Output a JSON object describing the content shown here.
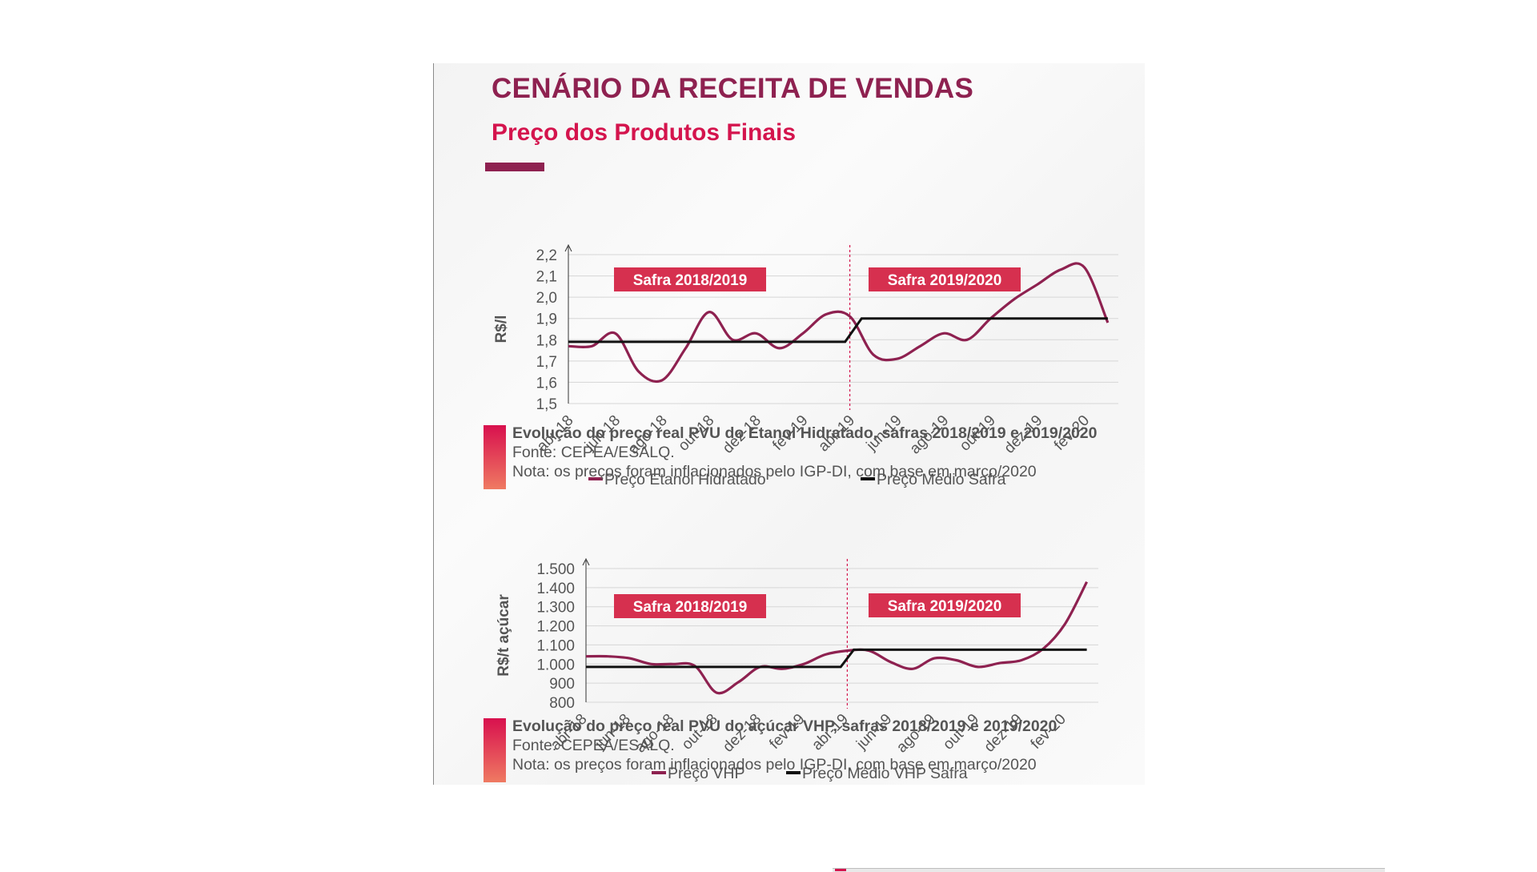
{
  "page": {
    "title": "CENÁRIO DA RECEITA DE VENDAS",
    "subtitle": "Preço dos Produtos Finais"
  },
  "colors": {
    "title": "#8e2150",
    "subtitle": "#d4144d",
    "series_main": "#8e2150",
    "series_avg": "#111111",
    "badge": "#d6304f"
  },
  "chart_data": [
    {
      "type": "line",
      "ylabel": "R$/l",
      "yticks": [
        "1,5",
        "1,6",
        "1,7",
        "1,8",
        "1,9",
        "2,0",
        "2,1",
        "2,2"
      ],
      "ylim": [
        1.5,
        2.2
      ],
      "x_ticks": [
        "abr-18",
        "jun-18",
        "ago-18",
        "out-18",
        "dez-18",
        "fev-19",
        "abr-19",
        "jun-19",
        "ago-19",
        "out-19",
        "dez-19",
        "fev-20"
      ],
      "badges": [
        "Safra 2018/2019",
        "Safra 2019/2020"
      ],
      "divider_month": 12,
      "grid": true,
      "legend_position": "bottom",
      "series": [
        {
          "name": "Preço Etanol Hidratado",
          "x": [
            0,
            1,
            2,
            3,
            4,
            5,
            6,
            7,
            8,
            9,
            10,
            11,
            12,
            13,
            14,
            15,
            16,
            17,
            18,
            19,
            20,
            21,
            22,
            23
          ],
          "values": [
            1.77,
            1.77,
            1.83,
            1.65,
            1.61,
            1.76,
            1.93,
            1.8,
            1.83,
            1.76,
            1.83,
            1.92,
            1.91,
            1.73,
            1.71,
            1.77,
            1.83,
            1.8,
            1.9,
            1.99,
            2.06,
            2.13,
            2.14,
            1.88
          ]
        },
        {
          "name": "Preço Médio Safra",
          "x": [
            0,
            11.8,
            12.5,
            23
          ],
          "values": [
            1.79,
            1.79,
            1.9,
            1.9
          ]
        }
      ]
    },
    {
      "type": "line",
      "ylabel": "R$/t açúcar",
      "yticks": [
        "800",
        "900",
        "1.000",
        "1.100",
        "1.200",
        "1.300",
        "1.400",
        "1.500"
      ],
      "ylim": [
        800,
        1500
      ],
      "x_ticks": [
        "abr-18",
        "jun-18",
        "ago-18",
        "out-18",
        "dez-18",
        "fev-19",
        "abr-19",
        "jun-19",
        "ago-19",
        "out-19",
        "dez-19",
        "fev-20"
      ],
      "badges": [
        "Safra 2018/2019",
        "Safra 2019/2020"
      ],
      "divider_month": 12,
      "grid": true,
      "legend_position": "bottom",
      "series": [
        {
          "name": "Preço VHP",
          "x": [
            0,
            1,
            2,
            3,
            4,
            5,
            6,
            7,
            8,
            9,
            10,
            11,
            12,
            13,
            14,
            15,
            16,
            17,
            18,
            19,
            20,
            21,
            22,
            23
          ],
          "values": [
            1040,
            1040,
            1030,
            1000,
            1000,
            990,
            850,
            905,
            985,
            975,
            1000,
            1050,
            1070,
            1070,
            1010,
            975,
            1030,
            1020,
            985,
            1005,
            1020,
            1080,
            1210,
            1430
          ]
        },
        {
          "name": "Preço Médio VHP Safra",
          "x": [
            0,
            11.7,
            12.3,
            23
          ],
          "values": [
            985,
            985,
            1075,
            1075
          ]
        }
      ]
    }
  ],
  "captions": [
    {
      "title": "Evolução do preço real PVU do Etanol Hidratado, safras 2018/2019 e 2019/2020",
      "source": "Fonte: CEPEA/ESALQ.",
      "note": "Nota: os preços foram inflacionados pelo IGP-DI, com base em março/2020"
    },
    {
      "title": "Evolução do preço real PVU do açúcar VHP, safras 2018/2019 e 2019/2020",
      "source": "Fonte: CEPEA/ESALQ.",
      "note": "Nota: os preços foram inflacionados pelo IGP-DI, com base em março/2020"
    }
  ]
}
